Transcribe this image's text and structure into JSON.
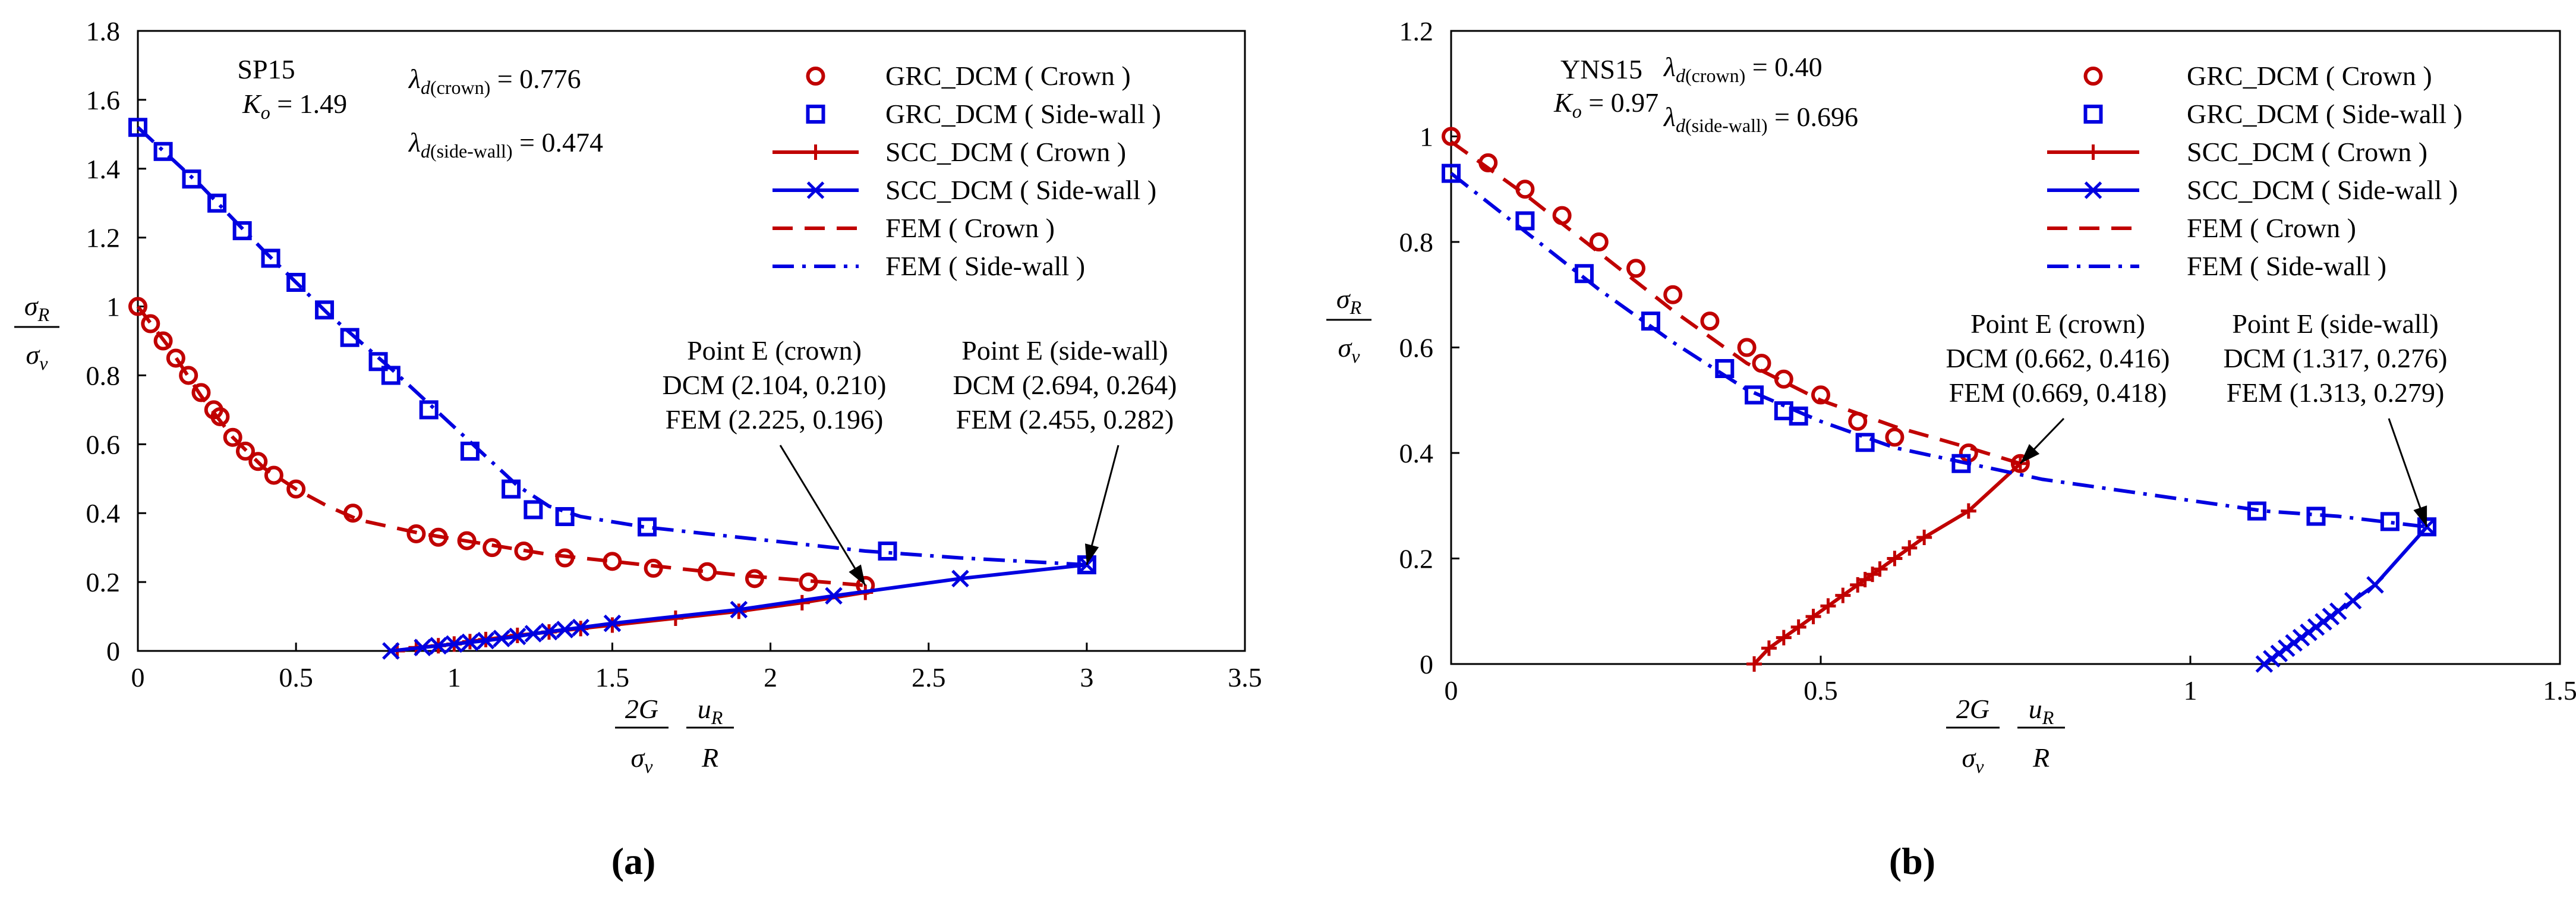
{
  "figure_labels": [
    "(a)",
    "(b)"
  ],
  "chart_data": [
    {
      "type": "scatter",
      "panel": "(a)",
      "title": "",
      "xlabel": "2G/σv · uR/R",
      "ylabel": "σR/σv",
      "xlim": [
        0,
        3.5
      ],
      "ylim": [
        0,
        1.8
      ],
      "xticks": [
        "0",
        "0.5",
        "1",
        "1.5",
        "2",
        "2.5",
        "3",
        "3.5"
      ],
      "yticks": [
        "0",
        "0.2",
        "0.4",
        "0.6",
        "0.8",
        "1",
        "1.2",
        "1.4",
        "1.6",
        "1.8"
      ],
      "x_axis_label": {
        "num_left": "2G",
        "den_left": "σ",
        "den_left_sub": "v",
        "num_right": "u",
        "num_right_sub": "R",
        "den_right": "R"
      },
      "y_axis_label": {
        "num": "σ",
        "num_sub": "R",
        "den": "σ",
        "den_sub": "v"
      },
      "info": {
        "case": "SP15",
        "ko": "K",
        "ko_sub": "o",
        "ko_value": " = 1.49",
        "lambda_crown": {
          "sym": "λ",
          "sub": "d",
          "paren": "(crown)",
          "value": " = 0.776"
        },
        "lambda_wall": {
          "sym": "λ",
          "sub": "d",
          "paren": "(side-wall)",
          "value": " = 0.474"
        }
      },
      "annotations": [
        {
          "lines": [
            "Point E (crown)",
            "DCM (2.104, 0.210)",
            "FEM (2.225, 0.196)"
          ],
          "target": [
            2.3,
            0.19
          ]
        },
        {
          "lines": [
            "Point E (side-wall)",
            "DCM (2.694, 0.264)",
            "FEM (2.455, 0.282)"
          ],
          "target": [
            3.0,
            0.25
          ]
        }
      ],
      "series": [
        {
          "name": "GRC_DCM ( Crown )",
          "marker": "circle",
          "color": "#c00000",
          "x": [
            0,
            0.04,
            0.08,
            0.12,
            0.16,
            0.2,
            0.24,
            0.26,
            0.3,
            0.34,
            0.38,
            0.43,
            0.5,
            0.68,
            0.88,
            0.95,
            1.04,
            1.12,
            1.22,
            1.35,
            1.5,
            1.63,
            1.8,
            1.95,
            2.12,
            2.3
          ],
          "y": [
            1.0,
            0.95,
            0.9,
            0.85,
            0.8,
            0.75,
            0.7,
            0.68,
            0.62,
            0.58,
            0.55,
            0.51,
            0.47,
            0.4,
            0.34,
            0.33,
            0.32,
            0.3,
            0.29,
            0.27,
            0.26,
            0.24,
            0.23,
            0.21,
            0.2,
            0.19
          ]
        },
        {
          "name": "GRC_DCM ( Side-wall )",
          "marker": "square",
          "color": "#0000e0",
          "x": [
            0,
            0.08,
            0.17,
            0.25,
            0.33,
            0.42,
            0.5,
            0.59,
            0.67,
            0.76,
            0.8,
            0.92,
            1.05,
            1.18,
            1.25,
            1.35,
            1.61,
            2.37,
            3.0
          ],
          "y": [
            1.52,
            1.45,
            1.37,
            1.3,
            1.22,
            1.14,
            1.07,
            0.99,
            0.91,
            0.84,
            0.8,
            0.7,
            0.58,
            0.47,
            0.41,
            0.39,
            0.36,
            0.29,
            0.25
          ]
        },
        {
          "name": "SCC_DCM ( Crown )",
          "marker": "plus",
          "color": "#c00000",
          "x": [
            0.82,
            0.88,
            0.95,
            1.0,
            1.05,
            1.1,
            1.2,
            1.3,
            1.4,
            1.5,
            1.7,
            1.9,
            2.1,
            2.3
          ],
          "y": [
            0.0,
            0.01,
            0.015,
            0.02,
            0.027,
            0.033,
            0.045,
            0.055,
            0.065,
            0.075,
            0.095,
            0.115,
            0.14,
            0.17
          ]
        },
        {
          "name": "SCC_DCM ( Side-wall )",
          "marker": "x",
          "color": "#0000e0",
          "x": [
            0.8,
            0.9,
            0.95,
            1.0,
            1.05,
            1.1,
            1.15,
            1.2,
            1.25,
            1.3,
            1.35,
            1.4,
            1.5,
            1.9,
            2.2,
            2.6,
            3.0
          ],
          "y": [
            0.0,
            0.01,
            0.015,
            0.02,
            0.025,
            0.03,
            0.036,
            0.042,
            0.05,
            0.056,
            0.062,
            0.068,
            0.08,
            0.12,
            0.16,
            0.21,
            0.25
          ]
        },
        {
          "name": "FEM ( Crown )",
          "line": "dashed",
          "color": "#c00000",
          "x": [
            0,
            0.1,
            0.2,
            0.3,
            0.4,
            0.5,
            0.6,
            0.7,
            0.9,
            1.1,
            1.3,
            1.5,
            1.7,
            1.9,
            2.1,
            2.3
          ],
          "y": [
            1.0,
            0.88,
            0.74,
            0.62,
            0.53,
            0.47,
            0.42,
            0.38,
            0.34,
            0.31,
            0.28,
            0.26,
            0.24,
            0.22,
            0.205,
            0.19
          ]
        },
        {
          "name": "FEM ( Side-wall )",
          "line": "dashdot",
          "color": "#0000e0",
          "x": [
            0,
            0.2,
            0.4,
            0.6,
            0.8,
            1.0,
            1.2,
            1.3,
            1.4,
            1.6,
            1.8,
            2.0,
            2.3,
            2.6,
            3.0
          ],
          "y": [
            1.52,
            1.35,
            1.16,
            0.98,
            0.82,
            0.65,
            0.48,
            0.42,
            0.39,
            0.36,
            0.34,
            0.32,
            0.29,
            0.27,
            0.25
          ]
        }
      ]
    },
    {
      "type": "scatter",
      "panel": "(b)",
      "title": "",
      "xlabel": "2G/σv · uR/R",
      "ylabel": "σR/σv",
      "xlim": [
        0,
        1.5
      ],
      "ylim": [
        0,
        1.2
      ],
      "xticks": [
        "0",
        "0.5",
        "1",
        "1.5"
      ],
      "yticks": [
        "0",
        "0.2",
        "0.4",
        "0.6",
        "0.8",
        "1",
        "1.2"
      ],
      "x_axis_label": {
        "num_left": "2G",
        "den_left": "σ",
        "den_left_sub": "v",
        "num_right": "u",
        "num_right_sub": "R",
        "den_right": "R"
      },
      "y_axis_label": {
        "num": "σ",
        "num_sub": "R",
        "den": "σ",
        "den_sub": "v"
      },
      "info": {
        "case": "YNS15",
        "ko": "K",
        "ko_sub": "o",
        "ko_value": " = 0.97",
        "lambda_crown": {
          "sym": "λ",
          "sub": "d",
          "paren": "(crown)",
          "value": " = 0.40"
        },
        "lambda_wall": {
          "sym": "λ",
          "sub": "d",
          "paren": "(side-wall)",
          "value": " = 0.696"
        }
      },
      "annotations": [
        {
          "lines": [
            "Point E (crown)",
            "DCM (0.662, 0.416)",
            "FEM (0.669, 0.418)"
          ],
          "target": [
            0.77,
            0.38
          ]
        },
        {
          "lines": [
            "Point E (side-wall)",
            "DCM (1.317, 0.276)",
            "FEM (1.313, 0.279)"
          ],
          "target": [
            1.32,
            0.26
          ]
        }
      ],
      "series": [
        {
          "name": "GRC_DCM ( Crown )",
          "marker": "circle",
          "color": "#c00000",
          "x": [
            0,
            0.05,
            0.1,
            0.15,
            0.2,
            0.25,
            0.3,
            0.35,
            0.4,
            0.42,
            0.45,
            0.5,
            0.55,
            0.6,
            0.7,
            0.77
          ],
          "y": [
            1.0,
            0.95,
            0.9,
            0.85,
            0.8,
            0.75,
            0.7,
            0.65,
            0.6,
            0.57,
            0.54,
            0.51,
            0.46,
            0.43,
            0.4,
            0.38
          ]
        },
        {
          "name": "GRC_DCM ( Side-wall )",
          "marker": "square",
          "color": "#0000e0",
          "x": [
            0,
            0.1,
            0.18,
            0.27,
            0.37,
            0.41,
            0.45,
            0.47,
            0.56,
            0.69,
            1.09,
            1.17,
            1.27,
            1.32
          ],
          "y": [
            0.93,
            0.84,
            0.74,
            0.65,
            0.56,
            0.51,
            0.48,
            0.47,
            0.42,
            0.38,
            0.29,
            0.28,
            0.27,
            0.26
          ]
        },
        {
          "name": "SCC_DCM ( Crown )",
          "marker": "plus",
          "color": "#c00000",
          "x": [
            0.41,
            0.43,
            0.45,
            0.47,
            0.49,
            0.51,
            0.53,
            0.55,
            0.56,
            0.57,
            0.58,
            0.6,
            0.62,
            0.64,
            0.7,
            0.77
          ],
          "y": [
            0.0,
            0.03,
            0.05,
            0.07,
            0.09,
            0.11,
            0.13,
            0.15,
            0.16,
            0.17,
            0.18,
            0.2,
            0.22,
            0.24,
            0.29,
            0.38
          ]
        },
        {
          "name": "SCC_DCM ( Side-wall )",
          "marker": "x",
          "color": "#0000e0",
          "x": [
            1.1,
            1.11,
            1.12,
            1.13,
            1.14,
            1.15,
            1.16,
            1.17,
            1.18,
            1.19,
            1.2,
            1.22,
            1.25,
            1.32
          ],
          "y": [
            0.0,
            0.01,
            0.02,
            0.03,
            0.04,
            0.05,
            0.06,
            0.07,
            0.08,
            0.09,
            0.1,
            0.12,
            0.15,
            0.26
          ]
        },
        {
          "name": "FEM ( Crown )",
          "line": "dashed",
          "color": "#c00000",
          "x": [
            0,
            0.1,
            0.2,
            0.3,
            0.4,
            0.5,
            0.6,
            0.7,
            0.77
          ],
          "y": [
            0.99,
            0.89,
            0.78,
            0.67,
            0.57,
            0.5,
            0.45,
            0.41,
            0.38
          ]
        },
        {
          "name": "FEM ( Side-wall )",
          "line": "dashdot",
          "color": "#0000e0",
          "x": [
            0,
            0.1,
            0.2,
            0.3,
            0.4,
            0.5,
            0.6,
            0.7,
            0.8,
            0.9,
            1.0,
            1.1,
            1.2,
            1.32
          ],
          "y": [
            0.93,
            0.82,
            0.71,
            0.61,
            0.52,
            0.46,
            0.41,
            0.38,
            0.35,
            0.33,
            0.31,
            0.29,
            0.28,
            0.26
          ]
        }
      ]
    }
  ]
}
